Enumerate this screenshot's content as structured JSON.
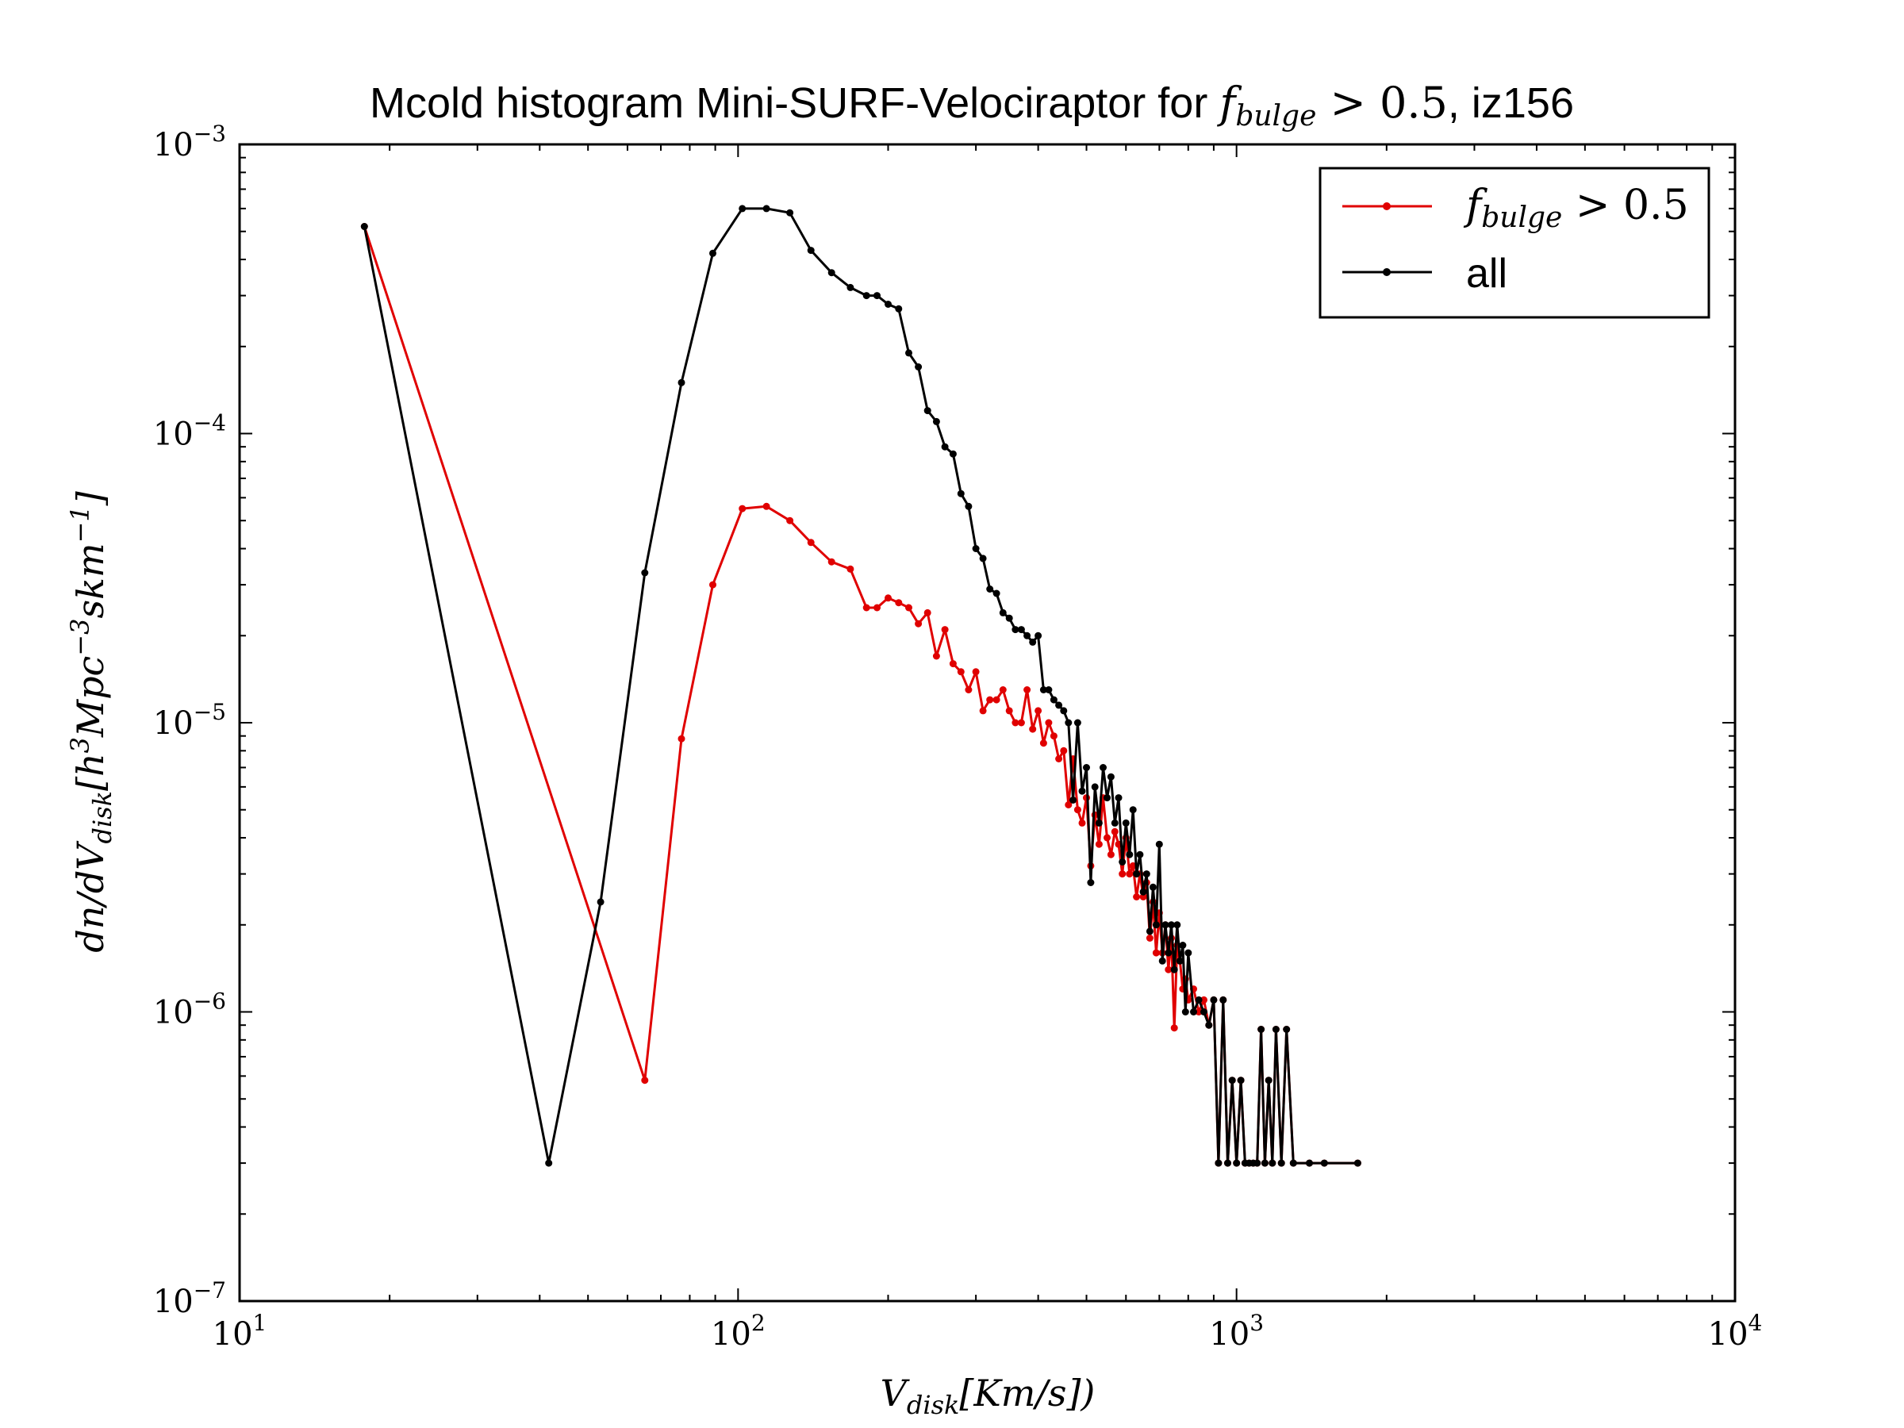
{
  "chart_data": {
    "type": "line",
    "title": "Mcold histogram Mini-SURF-Velociraptor for f_bulge > 0.5, iz156",
    "title_parts": {
      "prefix": "Mcold histogram Mini-SURF-Velociraptor for ",
      "math_var": "f",
      "math_sub": "bulge",
      "math_rest": " > 0.5",
      "suffix": ", iz156"
    },
    "xlabel": "V_disk[Km/s])",
    "xlabel_parts": {
      "var": "V",
      "sub": "disk",
      "rest": "[Km/s])"
    },
    "ylabel": "dn/dV_disk[h^3 Mpc^-3 s km^-1]",
    "ylabel_parts": {
      "pre": "dn/dV",
      "sub": "disk",
      "mid1": "[h",
      "sup1": "3",
      "mid2": "Mpc",
      "sup2": "−3",
      "mid3": "skm",
      "sup3": "−1",
      "end": "]"
    },
    "x_scale": "log",
    "y_scale": "log",
    "xlim": [
      10,
      10000
    ],
    "ylim": [
      1e-07,
      0.001
    ],
    "x_ticks": [
      {
        "value": 10,
        "base": "10",
        "exp": "1"
      },
      {
        "value": 100,
        "base": "10",
        "exp": "2"
      },
      {
        "value": 1000,
        "base": "10",
        "exp": "3"
      },
      {
        "value": 10000,
        "base": "10",
        "exp": "4"
      }
    ],
    "y_ticks": [
      {
        "value": 1e-07,
        "base": "10",
        "exp": "−7"
      },
      {
        "value": 1e-06,
        "base": "10",
        "exp": "−6"
      },
      {
        "value": 1e-05,
        "base": "10",
        "exp": "−5"
      },
      {
        "value": 0.0001,
        "base": "10",
        "exp": "−4"
      },
      {
        "value": 0.001,
        "base": "10",
        "exp": "−3"
      }
    ],
    "grid": false,
    "legend_placement": "top-right",
    "series": [
      {
        "name": "f_bulge > 0.5",
        "legend_parts": {
          "var": "f",
          "sub": "bulge",
          "rest": " > 0.5"
        },
        "color": "#e00000",
        "x": [
          17.8,
          65,
          77,
          89,
          102,
          114,
          127,
          140,
          154,
          168,
          181,
          190,
          200,
          210,
          220,
          230,
          240,
          250,
          260,
          270,
          280,
          290,
          300,
          310,
          320,
          330,
          340,
          350,
          360,
          370,
          380,
          390,
          400,
          410,
          420,
          430,
          440,
          450,
          460,
          470,
          480,
          490,
          500,
          510,
          520,
          530,
          540,
          550,
          560,
          570,
          580,
          590,
          600,
          610,
          620,
          630,
          640,
          650,
          660,
          670,
          680,
          690,
          700,
          710,
          720,
          730,
          740,
          750,
          760,
          770,
          780,
          790,
          800,
          820,
          840,
          860,
          880,
          900,
          920,
          940,
          960,
          980,
          1000,
          1020,
          1040,
          1060,
          1080,
          1100,
          1120,
          1140,
          1160,
          1180,
          1200,
          1230,
          1260,
          1300,
          1400,
          1500,
          1750
        ],
        "y": [
          0.00052,
          5.8e-07,
          8.8e-06,
          3e-05,
          5.5e-05,
          5.6e-05,
          5e-05,
          4.2e-05,
          3.6e-05,
          3.4e-05,
          2.5e-05,
          2.5e-05,
          2.7e-05,
          2.6e-05,
          2.5e-05,
          2.2e-05,
          2.4e-05,
          1.7e-05,
          2.1e-05,
          1.6e-05,
          1.5e-05,
          1.3e-05,
          1.5e-05,
          1.1e-05,
          1.2e-05,
          1.2e-05,
          1.3e-05,
          1.1e-05,
          1e-05,
          1e-05,
          1.3e-05,
          9.5e-06,
          1.1e-05,
          8.5e-06,
          1e-05,
          9e-06,
          7.5e-06,
          8e-06,
          5.2e-06,
          7.5e-06,
          5e-06,
          4.5e-06,
          5.5e-06,
          3.2e-06,
          4.8e-06,
          3.8e-06,
          5.5e-06,
          4e-06,
          3.5e-06,
          4.2e-06,
          3.8e-06,
          3e-06,
          4e-06,
          3e-06,
          3.2e-06,
          2.5e-06,
          3e-06,
          2.5e-06,
          2.8e-06,
          1.8e-06,
          2.4e-06,
          1.6e-06,
          2.2e-06,
          1.6e-06,
          2e-06,
          1.4e-06,
          1.8e-06,
          8.8e-07,
          1.7e-06,
          1.5e-06,
          1.2e-06,
          1.3e-06,
          1.1e-06,
          1.2e-06,
          1e-06,
          1.1e-06,
          9e-07,
          1.1e-06,
          3e-07,
          1.1e-06,
          3e-07,
          5.8e-07,
          3e-07,
          5.8e-07,
          3e-07,
          3e-07,
          3e-07,
          3e-07,
          8.7e-07,
          3e-07,
          5.8e-07,
          3e-07,
          8.7e-07,
          3e-07,
          8.7e-07,
          3e-07,
          3e-07,
          3e-07,
          3e-07
        ]
      },
      {
        "name": "all",
        "legend_parts": {
          "var": "",
          "sub": "",
          "rest": "all"
        },
        "color": "#000000",
        "x": [
          17.8,
          41.7,
          53,
          65,
          77,
          89,
          102,
          114,
          127,
          140,
          154,
          168,
          181,
          190,
          200,
          210,
          220,
          230,
          240,
          250,
          260,
          270,
          280,
          290,
          300,
          310,
          320,
          330,
          340,
          350,
          360,
          370,
          380,
          390,
          400,
          410,
          420,
          430,
          440,
          450,
          460,
          470,
          480,
          490,
          500,
          510,
          520,
          530,
          540,
          550,
          560,
          570,
          580,
          590,
          600,
          610,
          620,
          630,
          640,
          650,
          660,
          670,
          680,
          690,
          700,
          710,
          720,
          730,
          740,
          750,
          760,
          770,
          780,
          790,
          800,
          820,
          840,
          860,
          880,
          900,
          920,
          940,
          960,
          980,
          1000,
          1020,
          1040,
          1060,
          1080,
          1100,
          1120,
          1140,
          1160,
          1180,
          1200,
          1230,
          1260,
          1300,
          1400,
          1500,
          1750
        ],
        "y": [
          0.00052,
          3e-07,
          2.4e-06,
          3.3e-05,
          0.00015,
          0.00042,
          0.0006,
          0.0006,
          0.00058,
          0.00043,
          0.00036,
          0.00032,
          0.0003,
          0.0003,
          0.00028,
          0.00027,
          0.00019,
          0.00017,
          0.00012,
          0.00011,
          9e-05,
          8.5e-05,
          6.2e-05,
          5.6e-05,
          4e-05,
          3.7e-05,
          2.9e-05,
          2.8e-05,
          2.4e-05,
          2.3e-05,
          2.1e-05,
          2.1e-05,
          2e-05,
          1.9e-05,
          2e-05,
          1.3e-05,
          1.3e-05,
          1.2e-05,
          1.15e-05,
          1.1e-05,
          1e-05,
          5.4e-06,
          1e-05,
          5.8e-06,
          7e-06,
          2.8e-06,
          6e-06,
          4.5e-06,
          7e-06,
          5.5e-06,
          6.5e-06,
          4.5e-06,
          5.5e-06,
          3.3e-06,
          4.5e-06,
          3.5e-06,
          5e-06,
          3e-06,
          3.5e-06,
          2.6e-06,
          3e-06,
          1.9e-06,
          2.7e-06,
          2e-06,
          3.8e-06,
          1.5e-06,
          2e-06,
          1.6e-06,
          2e-06,
          1.4e-06,
          2e-06,
          1.5e-06,
          1.7e-06,
          1e-06,
          1.6e-06,
          1e-06,
          1.1e-06,
          1e-06,
          9e-07,
          1.1e-06,
          3e-07,
          1.1e-06,
          3e-07,
          5.8e-07,
          3e-07,
          5.8e-07,
          3e-07,
          3e-07,
          3e-07,
          3e-07,
          8.7e-07,
          3e-07,
          5.8e-07,
          3e-07,
          8.7e-07,
          3e-07,
          8.7e-07,
          3e-07,
          3e-07,
          3e-07,
          3e-07
        ]
      }
    ]
  }
}
